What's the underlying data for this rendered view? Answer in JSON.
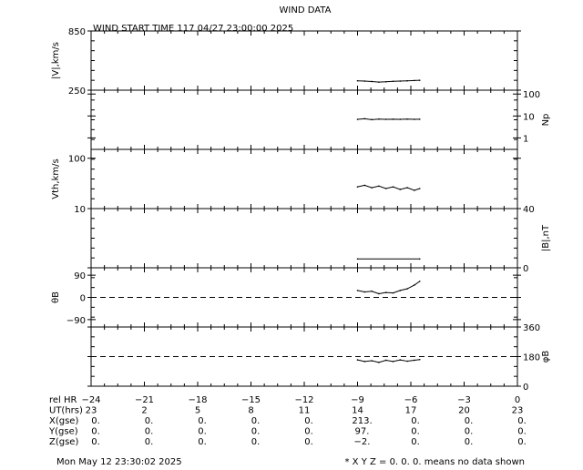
{
  "chart_data": {
    "type": "line",
    "title": "WIND DATA",
    "subtitle": "WIND START TIME 117 04/27 23:00:00 2025",
    "x_range": [
      -24,
      0
    ],
    "x_ticks": [
      -24,
      -21,
      -18,
      -15,
      -12,
      -9,
      -6,
      -3,
      0
    ],
    "panels": [
      {
        "id": "v",
        "ylabel": "|V|,km/s",
        "label_side": "left",
        "scale": "linear",
        "ylim": [
          250,
          850
        ],
        "tick_labels": [
          "850",
          "250"
        ],
        "tick_values": [
          850,
          250
        ],
        "x": [
          -9,
          -8.6,
          -8.2,
          -7.8,
          -7.4,
          -7.0,
          -6.6,
          -6.2,
          -5.8,
          -5.5
        ],
        "y": [
          345,
          342,
          338,
          332,
          335,
          340,
          342,
          345,
          348,
          350
        ]
      },
      {
        "id": "np",
        "ylabel": "Np",
        "label_side": "right",
        "scale": "log",
        "ylim": [
          0.3,
          150
        ],
        "tick_labels": [
          "100",
          "10",
          "1"
        ],
        "tick_values": [
          100,
          10,
          1
        ],
        "x": [
          -9,
          -8.6,
          -8.2,
          -7.8,
          -7.4,
          -7.0,
          -6.6,
          -6.2,
          -5.8,
          -5.5
        ],
        "y": [
          7,
          7.5,
          6.8,
          7.2,
          7,
          7.1,
          7,
          7.2,
          7,
          7.1
        ]
      },
      {
        "id": "vth",
        "ylabel": "Vth,km/s",
        "label_side": "left",
        "scale": "log",
        "ylim": [
          10,
          150
        ],
        "tick_labels": [
          "100",
          "10"
        ],
        "tick_values": [
          100,
          10
        ],
        "x": [
          -9,
          -8.6,
          -8.2,
          -7.8,
          -7.4,
          -7.0,
          -6.6,
          -6.2,
          -5.8,
          -5.5
        ],
        "y": [
          27,
          29,
          26,
          28,
          25,
          27,
          24,
          26,
          23,
          25
        ]
      },
      {
        "id": "b",
        "ylabel": "|B|,nT",
        "label_side": "right",
        "scale": "linear",
        "ylim": [
          0,
          40
        ],
        "tick_labels": [
          "40",
          "0"
        ],
        "tick_values": [
          40,
          0
        ],
        "x": [
          -9,
          -5.5
        ],
        "y": [
          6,
          6
        ]
      },
      {
        "id": "theta",
        "ylabel": "θB",
        "label_side": "left",
        "scale": "linear",
        "ylim": [
          -120,
          120
        ],
        "tick_labels": [
          "90",
          "0",
          "−90"
        ],
        "tick_values": [
          90,
          0,
          -90
        ],
        "dashed_zero": 0,
        "x": [
          -9,
          -8.6,
          -8.2,
          -7.8,
          -7.4,
          -7.0,
          -6.6,
          -6.2,
          -5.8,
          -5.5
        ],
        "y": [
          28,
          22,
          25,
          15,
          20,
          18,
          28,
          35,
          50,
          65
        ]
      },
      {
        "id": "phi",
        "ylabel": "φB",
        "label_side": "right",
        "scale": "linear",
        "ylim": [
          0,
          360
        ],
        "tick_labels": [
          "360",
          "180",
          "0"
        ],
        "tick_values": [
          360,
          180,
          0
        ],
        "dashed_zero": 180,
        "x": [
          -9,
          -8.6,
          -8.2,
          -7.8,
          -7.4,
          -7.0,
          -6.6,
          -6.2,
          -5.8,
          -5.5
        ],
        "y": [
          160,
          150,
          155,
          145,
          158,
          150,
          160,
          152,
          158,
          162
        ]
      }
    ],
    "table": {
      "rows": [
        {
          "label": "rel HR",
          "values": [
            "−24",
            "−21",
            "−18",
            "−15",
            "−12",
            "−9",
            "−6",
            "−3",
            "0"
          ]
        },
        {
          "label": "UT(hrs)",
          "values": [
            "23",
            "2",
            "5",
            "8",
            "11",
            "14",
            "17",
            "20",
            "23"
          ]
        },
        {
          "label": "X(gse)",
          "values": [
            "0.",
            "0.",
            "0.",
            "0.",
            "0.",
            "213.",
            "0.",
            "0.",
            "0."
          ]
        },
        {
          "label": "Y(gse)",
          "values": [
            "0.",
            "0.",
            "0.",
            "0.",
            "0.",
            "97.",
            "0.",
            "0.",
            "0."
          ]
        },
        {
          "label": "Z(gse)",
          "values": [
            "0.",
            "0.",
            "0.",
            "0.",
            "0.",
            "−2.",
            "0.",
            "0.",
            "0."
          ]
        }
      ]
    }
  },
  "footer": {
    "timestamp": "Mon May 12 23:30:02 2025",
    "note": "* X Y Z = 0. 0. 0. means no data shown"
  }
}
